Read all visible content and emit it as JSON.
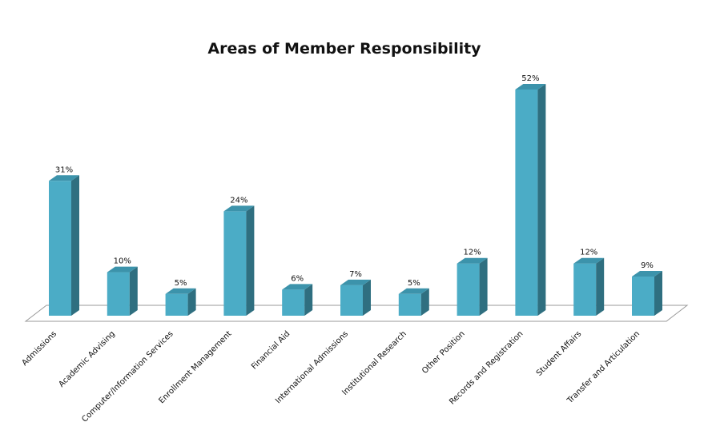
{
  "chart_data": {
    "type": "bar",
    "title": "Areas of Member Responsibility",
    "categories": [
      "Admissions",
      "Academic Advising",
      "Computer/Information Services",
      "Enrollment Management",
      "Financial Aid",
      "International Admissions",
      "Institutional Research",
      "Other Position",
      "Records and Registration",
      "Student Affairs",
      "Transfer and Articulation"
    ],
    "values": [
      31,
      10,
      5,
      24,
      6,
      7,
      5,
      12,
      52,
      12,
      9
    ],
    "data_labels": [
      "31%",
      "10%",
      "5%",
      "24%",
      "6%",
      "7%",
      "5%",
      "12%",
      "52%",
      "12%",
      "9%"
    ],
    "ylim": [
      0,
      52
    ],
    "grid": false,
    "legend": "none",
    "colors": {
      "front": "#4bacc6",
      "side": "#2f6f80",
      "top": "#3c93ab",
      "floor": "#ffffff",
      "floor_edge": "#9a9a9a"
    }
  }
}
